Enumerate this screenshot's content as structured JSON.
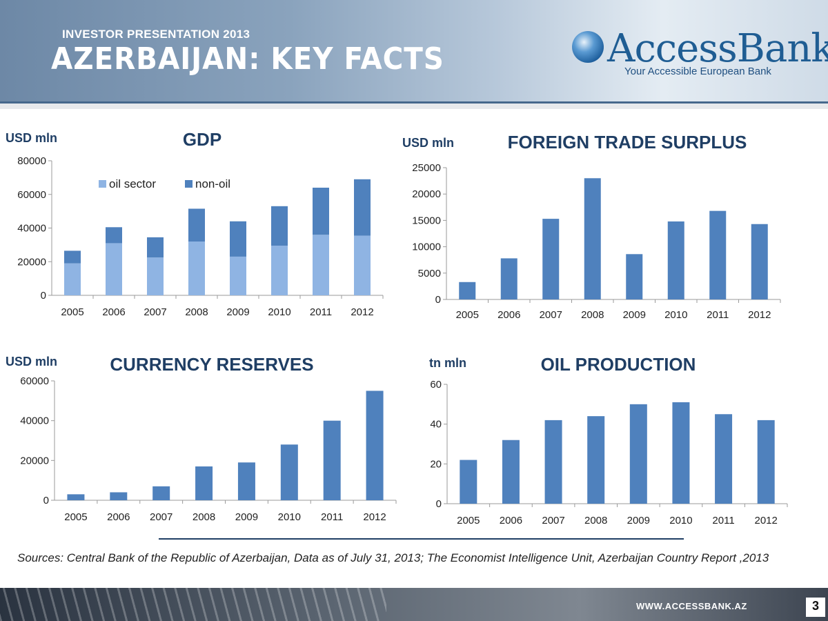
{
  "header": {
    "subtitle": "INVESTOR PRESENTATION 2013",
    "title": "AZERBAIJAN: KEY FACTS",
    "logo_name": "AccessBank",
    "logo_tagline": "Your Accessible European Bank"
  },
  "colors": {
    "bar_primary": "#4f81bd",
    "bar_light": "#8fb4e3",
    "title": "#1f3e64"
  },
  "chart_data": [
    {
      "id": "gdp",
      "type": "bar",
      "stacked": true,
      "title": "GDP",
      "unit": "USD mln",
      "categories": [
        "2005",
        "2006",
        "2007",
        "2008",
        "2009",
        "2010",
        "2011",
        "2012"
      ],
      "series": [
        {
          "name": "oil sector",
          "values": [
            19000,
            31000,
            22500,
            32000,
            23000,
            29500,
            36000,
            35500
          ]
        },
        {
          "name": "non-oil",
          "values": [
            7500,
            9500,
            12000,
            19500,
            21000,
            23500,
            28000,
            33500
          ]
        }
      ],
      "yticks": [
        0,
        20000,
        40000,
        60000,
        80000
      ],
      "ylim": [
        0,
        80000
      ],
      "legend": "top-left"
    },
    {
      "id": "trade",
      "type": "bar",
      "title": "FOREIGN TRADE SURPLUS",
      "unit": "USD mln",
      "categories": [
        "2005",
        "2006",
        "2007",
        "2008",
        "2009",
        "2010",
        "2011",
        "2012"
      ],
      "values": [
        3300,
        7800,
        15300,
        23000,
        8600,
        14800,
        16800,
        14300
      ],
      "yticks": [
        0,
        5000,
        10000,
        15000,
        20000,
        25000
      ],
      "ylim": [
        0,
        25000
      ]
    },
    {
      "id": "reserves",
      "type": "bar",
      "title": "CURRENCY RESERVES",
      "unit": "USD mln",
      "categories": [
        "2005",
        "2006",
        "2007",
        "2008",
        "2009",
        "2010",
        "2011",
        "2012"
      ],
      "values": [
        3000,
        4000,
        7000,
        17000,
        19000,
        28000,
        40000,
        55000
      ],
      "yticks": [
        0,
        20000,
        40000,
        60000
      ],
      "ylim": [
        0,
        60000
      ]
    },
    {
      "id": "oil",
      "type": "bar",
      "title": "OIL PRODUCTION",
      "unit": "tn mln",
      "categories": [
        "2005",
        "2006",
        "2007",
        "2008",
        "2009",
        "2010",
        "2011",
        "2012"
      ],
      "values": [
        22,
        32,
        42,
        44,
        50,
        51,
        45,
        42
      ],
      "yticks": [
        0,
        20,
        40,
        60
      ],
      "ylim": [
        0,
        60
      ]
    }
  ],
  "footer": {
    "sources": "Sources: Central Bank of the Republic of Azerbaijan, Data as of July 31, 2013; The Economist Intelligence Unit, Azerbaijan Country Report ,2013",
    "url": "WWW.ACCESSBANK.AZ",
    "page_number": "3"
  }
}
